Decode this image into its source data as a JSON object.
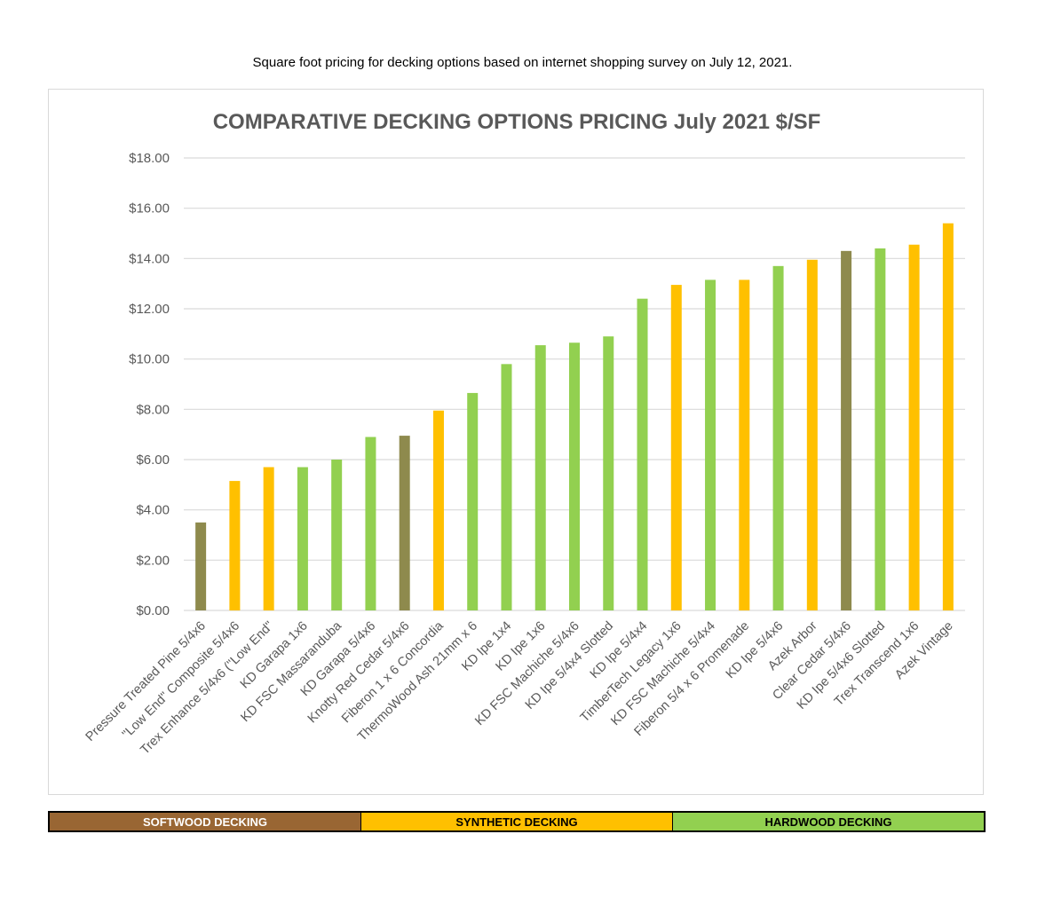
{
  "caption": "Square foot pricing for decking options based on internet shopping survey on July 12, 2021.",
  "colors": {
    "softwood": "#8e8a4d",
    "synthetic": "#ffc000",
    "hardwood": "#92d050",
    "softwood_legend": "#996633",
    "grid": "#d9d9d9",
    "axis_text": "#595959"
  },
  "chart_data": {
    "type": "bar",
    "title": "COMPARATIVE DECKING OPTIONS PRICING July 2021 $/SF",
    "ylim": [
      0,
      18
    ],
    "y_ticks": [
      "$0.00",
      "$2.00",
      "$4.00",
      "$6.00",
      "$8.00",
      "$10.00",
      "$12.00",
      "$14.00",
      "$16.00",
      "$18.00"
    ],
    "grid": true,
    "categories": [
      "Pressure Treated Pine 5/4x6",
      "\"Low End\" Composite 5/4x6",
      "Trex Enhance 5/4x6 (\"Low End\"",
      "KD Garapa 1x6",
      "KD FSC Massaranduba",
      "KD Garapa 5/4x6",
      "Knotty Red Cedar 5/4x6",
      "Fiberon 1 x 6 Concordia",
      "ThermoWood Ash 21mm x 6",
      "KD Ipe 1x4",
      "KD Ipe 1x6",
      "KD FSC Machiche 5/4x6",
      "KD Ipe 5/4x4 Slotted",
      "KD Ipe 5/4x4",
      "TimberTech Legacy 1x6",
      "KD FSC Machiche 5/4x4",
      "Fiberon 5/4 x 6 Promenade",
      "KD Ipe 5/4x6",
      "Azek Arbor",
      "Clear Cedar 5/4x6",
      "KD Ipe 5/4x6 Slotted",
      "Trex Transcend 1x6",
      "Azek Vintage"
    ],
    "values": [
      3.5,
      5.15,
      5.7,
      5.7,
      6.0,
      6.9,
      6.95,
      7.95,
      8.65,
      9.8,
      10.55,
      10.65,
      10.9,
      12.4,
      12.95,
      13.15,
      13.15,
      13.7,
      13.95,
      14.3,
      14.4,
      14.55,
      15.4
    ],
    "groups": [
      "softwood",
      "synthetic",
      "synthetic",
      "hardwood",
      "hardwood",
      "hardwood",
      "softwood",
      "synthetic",
      "hardwood",
      "hardwood",
      "hardwood",
      "hardwood",
      "hardwood",
      "hardwood",
      "synthetic",
      "hardwood",
      "synthetic",
      "hardwood",
      "synthetic",
      "softwood",
      "hardwood",
      "synthetic",
      "synthetic"
    ]
  },
  "legend": {
    "softwood": "SOFTWOOD DECKING",
    "synthetic": "SYNTHETIC DECKING",
    "hardwood": "HARDWOOD DECKING"
  }
}
